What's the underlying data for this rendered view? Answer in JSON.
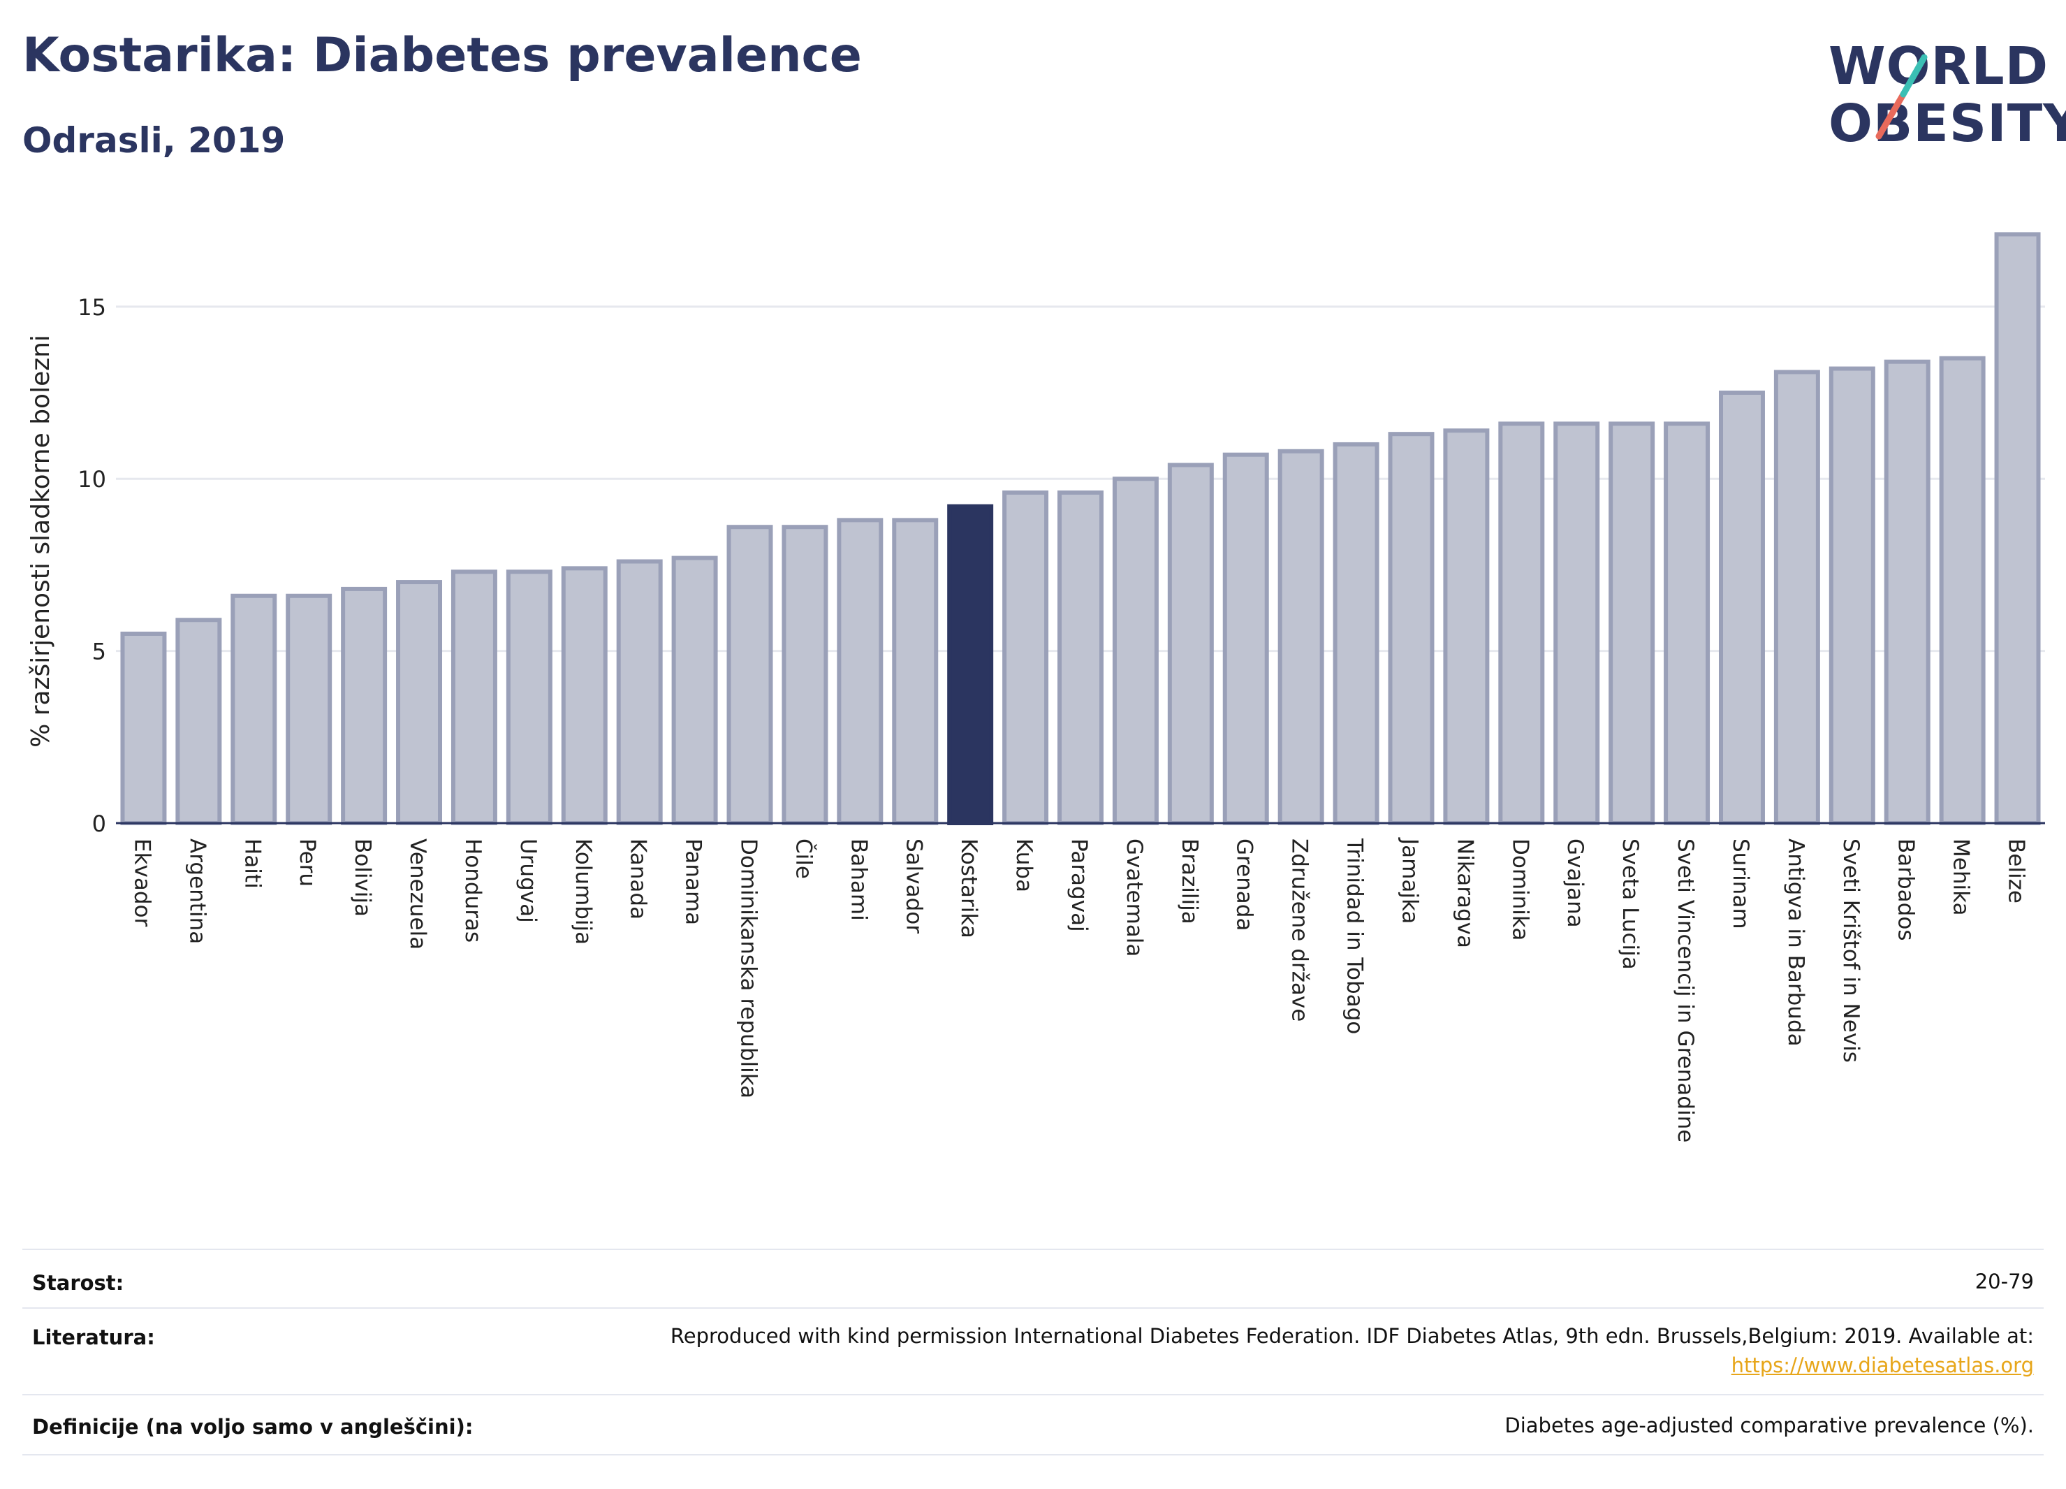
{
  "header": {
    "title": "Kostarika: Diabetes prevalence",
    "subtitle": "Odrasli, 2019"
  },
  "logo": {
    "line1": "WORLD",
    "line2": "OBESITY",
    "accent_colors": [
      "#e86a5b",
      "#3bbfb4"
    ]
  },
  "chart_data": {
    "type": "bar",
    "ylabel": "% razširjenosti sladkorne bolezni",
    "ylim": [
      0,
      18
    ],
    "yticks": [
      0,
      5,
      10,
      15
    ],
    "grid": true,
    "highlight": "Kostarika",
    "colors": {
      "bar": "#bfc3d1",
      "bar_border": "#9aa0b8",
      "highlight": "#2b3560",
      "grid": "#e6e8ee"
    },
    "categories": [
      "Ekvador",
      "Argentina",
      "Haiti",
      "Peru",
      "Bolivija",
      "Venezuela",
      "Honduras",
      "Urugvaj",
      "Kolumbija",
      "Kanada",
      "Panama",
      "Dominikanska republika",
      "Čile",
      "Bahami",
      "Salvador",
      "Kostarika",
      "Kuba",
      "Paragvaj",
      "Gvatemala",
      "Brazilija",
      "Grenada",
      "Združene države",
      "Trinidad in Tobago",
      "Jamajka",
      "Nikaragva",
      "Dominika",
      "Gvajana",
      "Sveta Lucija",
      "Sveti Vincencij in Grenadine",
      "Surinam",
      "Antigva in Barbuda",
      "Sveti Krištof in Nevis",
      "Barbados",
      "Mehika",
      "Belize"
    ],
    "values": [
      5.5,
      5.9,
      6.6,
      6.6,
      6.8,
      7.0,
      7.3,
      7.3,
      7.4,
      7.6,
      7.7,
      8.6,
      8.6,
      8.8,
      8.8,
      9.2,
      9.6,
      9.6,
      10.0,
      10.4,
      10.7,
      10.8,
      11.0,
      11.3,
      11.4,
      11.6,
      11.6,
      11.6,
      11.6,
      12.5,
      13.1,
      13.2,
      13.4,
      13.5,
      17.1
    ]
  },
  "info": {
    "rows": [
      {
        "label": "Starost:",
        "value": "20-79"
      },
      {
        "label": "Literatura:",
        "value": "Reproduced with kind permission International Diabetes Federation. IDF Diabetes Atlas, 9th edn. Brussels,Belgium: 2019. Available at:",
        "link": "https://www.diabetesatlas.org"
      },
      {
        "label": "Definicije (na voljo samo v angleščini):",
        "value": "Diabetes age-adjusted comparative prevalence (%)."
      }
    ]
  }
}
